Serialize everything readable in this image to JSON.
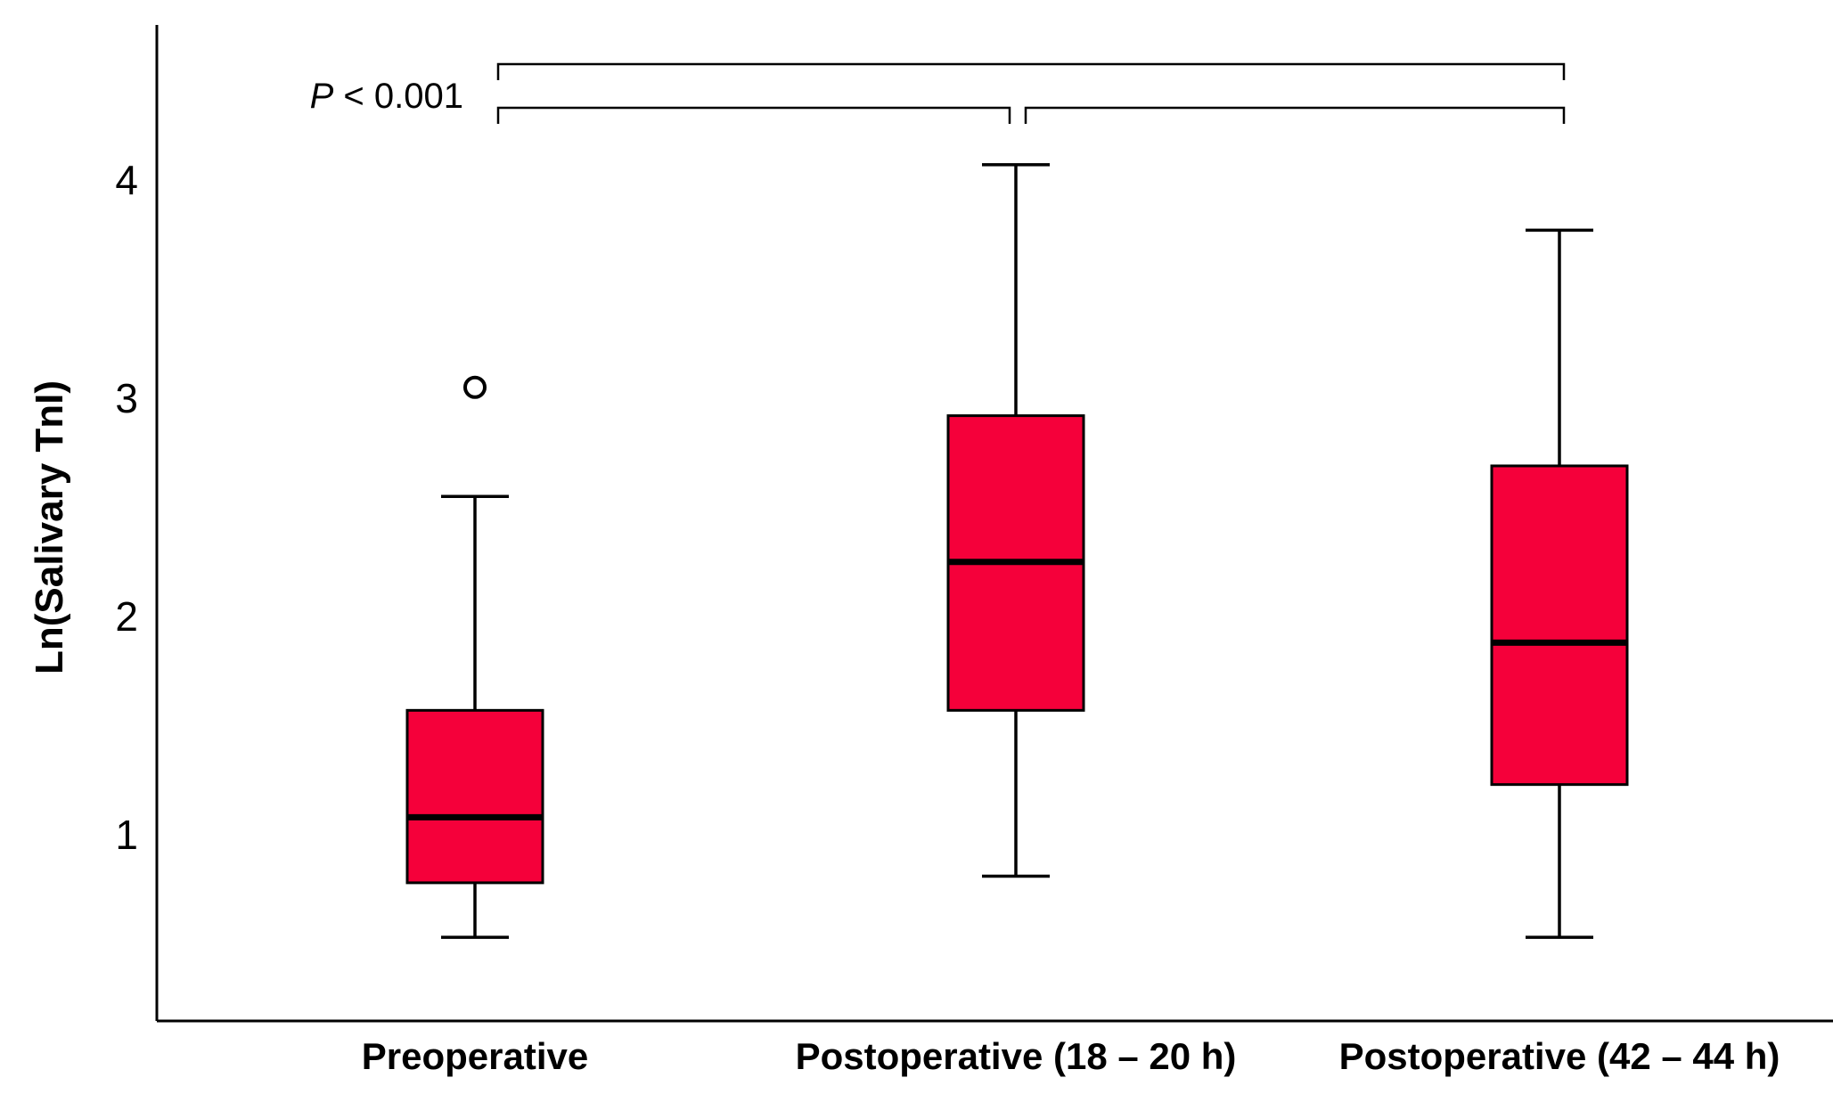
{
  "chart_data": {
    "type": "box",
    "ylabel": "Ln(Salivary TnI)",
    "xlabel": "",
    "ylim": [
      0.3,
      4.7
    ],
    "yticks": [
      1,
      2,
      3,
      4
    ],
    "grid": false,
    "box_color": "#F5003A",
    "categories": [
      "Preoperative",
      "Postoperative (18 – 20 h)",
      "Postoperative (42 – 44 h)"
    ],
    "boxes": [
      {
        "whisker_low": 0.53,
        "q1": 0.78,
        "median": 1.08,
        "q3": 1.57,
        "whisker_high": 2.55,
        "outliers": [
          3.05
        ]
      },
      {
        "whisker_low": 0.81,
        "q1": 1.57,
        "median": 2.25,
        "q3": 2.92,
        "whisker_high": 4.07,
        "outliers": []
      },
      {
        "whisker_low": 0.53,
        "q1": 1.23,
        "median": 1.88,
        "q3": 2.69,
        "whisker_high": 3.77,
        "outliers": []
      }
    ],
    "annotation": {
      "p_symbol": "P",
      "p_rest": " < 0.001",
      "comparisons": [
        [
          0,
          2
        ],
        [
          0,
          1
        ],
        [
          1,
          2
        ]
      ]
    }
  }
}
